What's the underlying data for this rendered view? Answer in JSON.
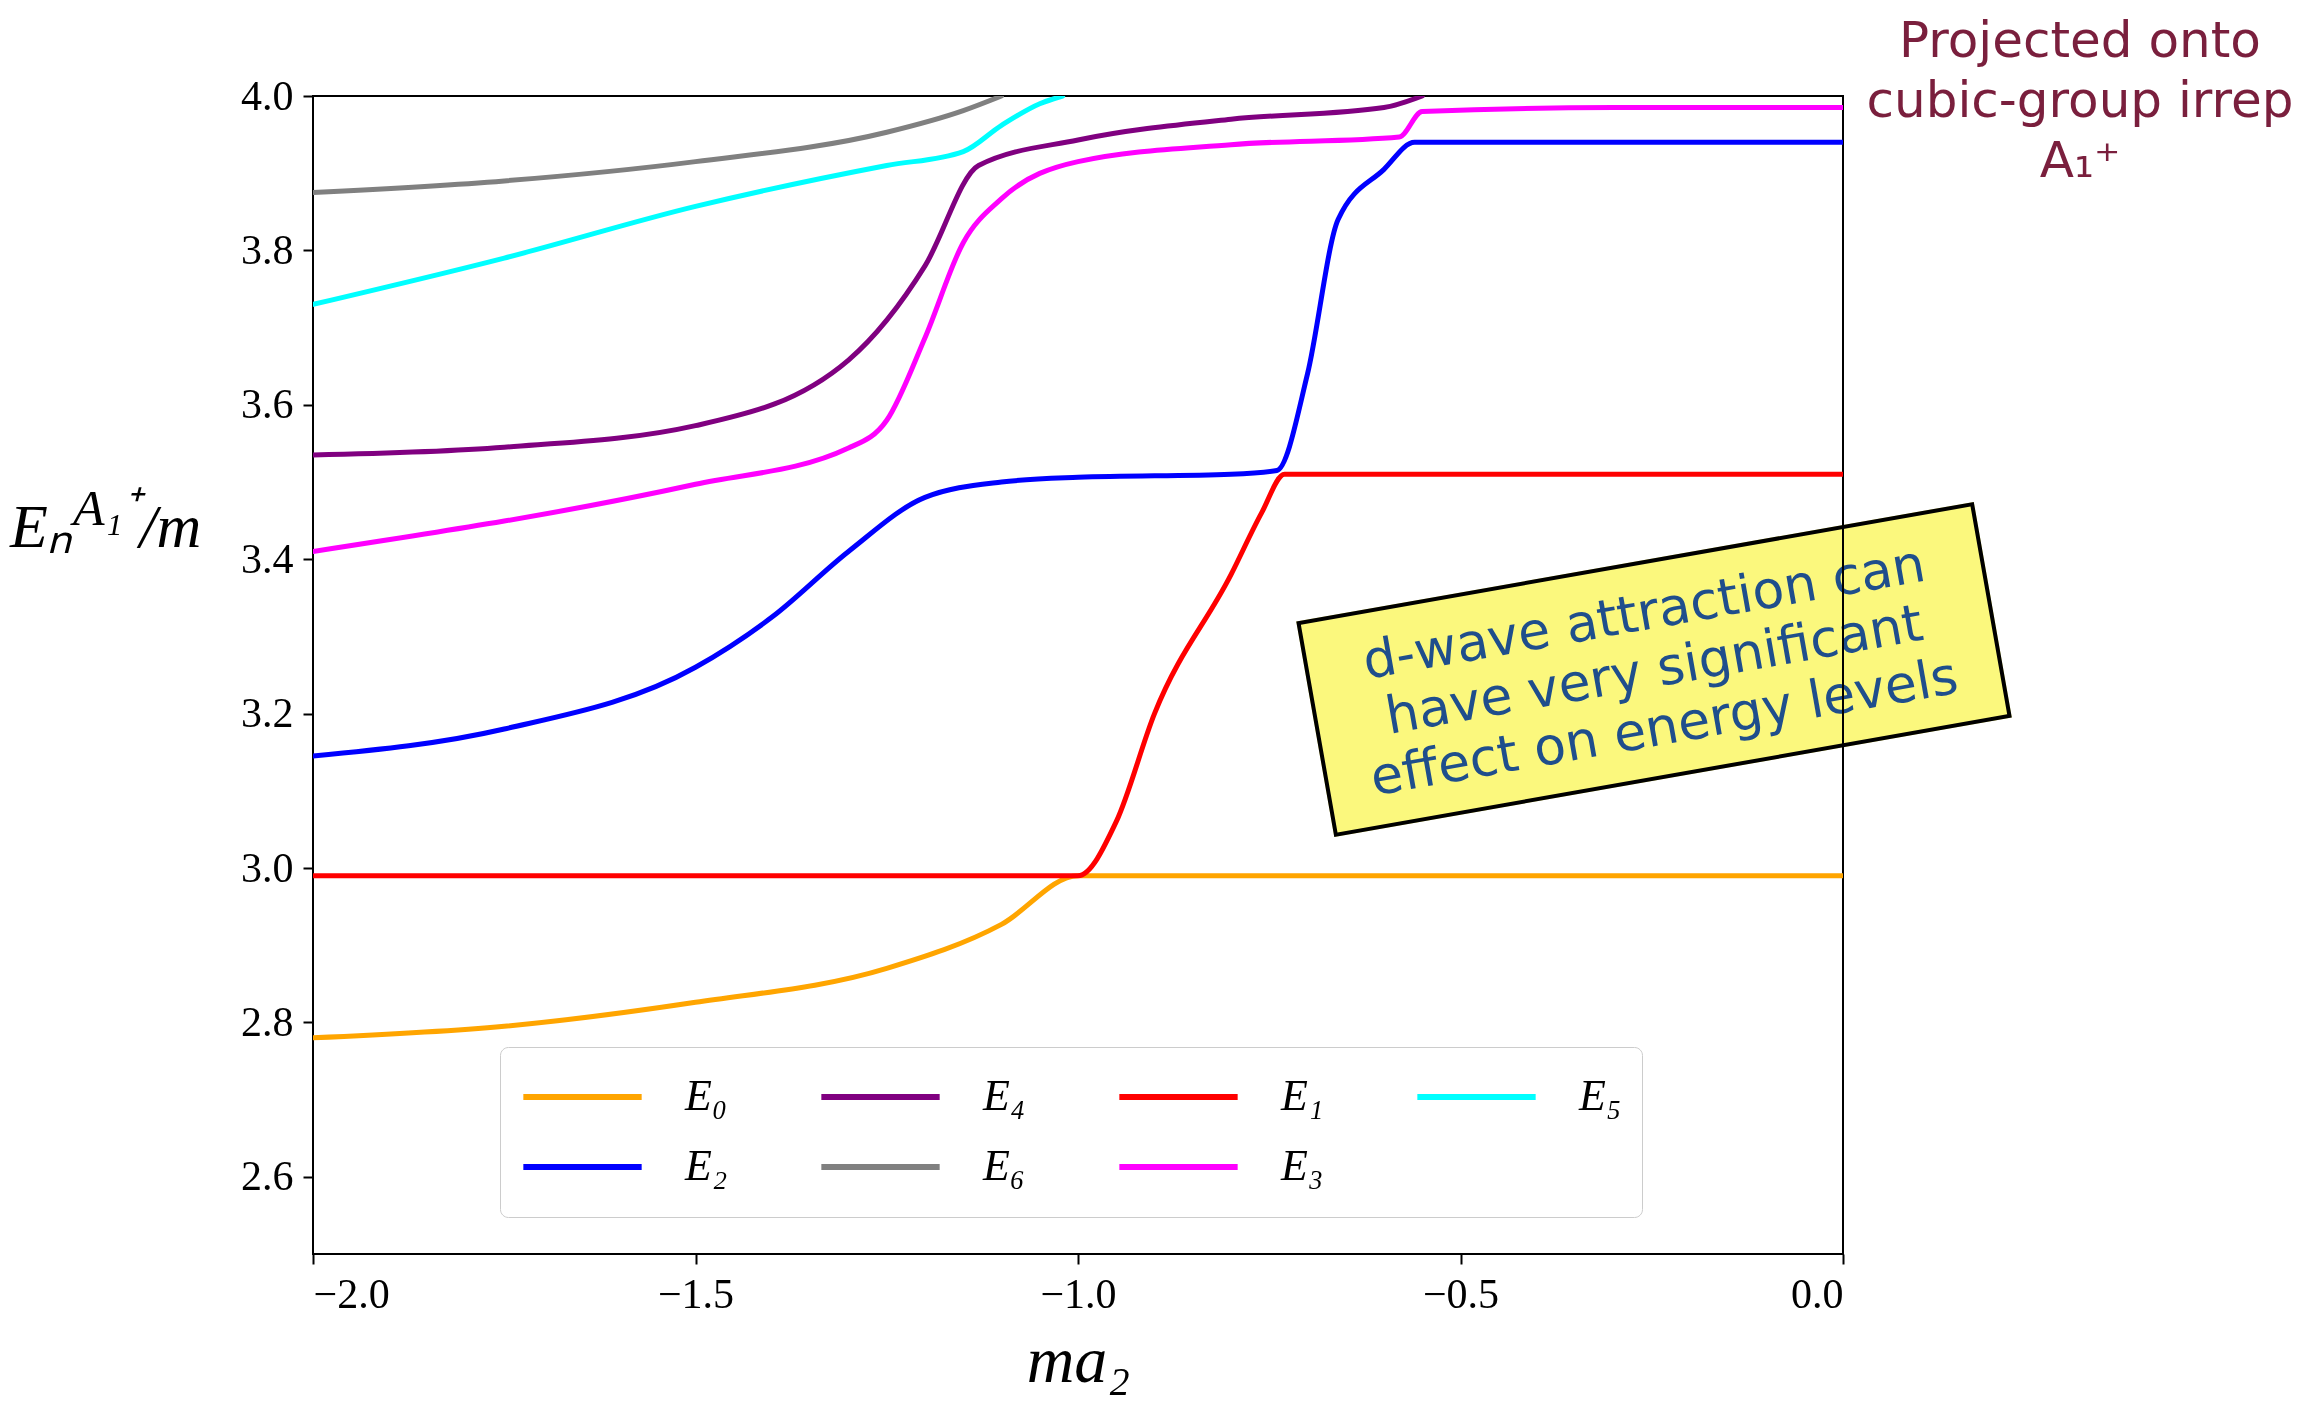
{
  "chart_data": {
    "type": "line",
    "xlabel": "ma₂",
    "ylabel": "Eₙ$^{A₁⁺}$/m",
    "annotations": [
      "Projected onto cubic-group irrep A₁⁺",
      "d-wave attraction can have very significant effect on energy levels"
    ],
    "xlim": [
      -2.0,
      0.0
    ],
    "ylim": [
      2.5,
      4.0
    ],
    "xticks": [
      {
        "value": -2,
        "label": "−2.0"
      },
      {
        "value": -1.5,
        "label": "−1.5"
      },
      {
        "value": -1,
        "label": "−1.0"
      },
      {
        "value": -0.5,
        "label": "−0.5"
      },
      {
        "value": 0,
        "label": "0.0"
      }
    ],
    "yticks": [
      2.6,
      2.8,
      {
        "value": 3,
        "label": "3.0"
      },
      3.2,
      3.4,
      3.6,
      3.8,
      {
        "value": 4,
        "label": "4.0"
      }
    ],
    "legend": "bottom",
    "line_style": "solid",
    "series": [
      {
        "name": "E₀",
        "color": "#ffa500",
        "x": [
          -2,
          -1.75,
          -1.5,
          -1.25,
          -1.1,
          -1.0,
          -0.5,
          0
        ],
        "values": [
          2.78,
          2.795,
          2.826,
          2.87,
          2.927,
          2.99,
          2.99,
          2.99
        ]
      },
      {
        "name": "E₁",
        "color": "#ff0000",
        "x": [
          -2,
          -1.5,
          -1.0,
          -0.95,
          -0.9,
          -0.8,
          -0.76,
          -0.73,
          -0.5,
          0
        ],
        "values": [
          2.99,
          2.99,
          2.99,
          3.06,
          3.2,
          3.38,
          3.46,
          3.51,
          3.51,
          3.51
        ]
      },
      {
        "name": "E₂",
        "color": "#0000ff",
        "x": [
          -2,
          -1.75,
          -1.5,
          -1.4,
          -1.3,
          -1.2,
          -1.1,
          -1.0,
          -0.8,
          -0.74,
          -0.7,
          -0.66,
          -0.6,
          -0.56,
          -0.3,
          0
        ],
        "values": [
          3.145,
          3.18,
          3.26,
          3.325,
          3.41,
          3.48,
          3.5,
          3.506,
          3.51,
          3.515,
          3.64,
          3.84,
          3.905,
          3.94,
          3.94,
          3.94
        ]
      },
      {
        "name": "E₃",
        "color": "#ff00ff",
        "x": [
          -2,
          -1.5,
          -1.3,
          -1.25,
          -1.2,
          -1.15,
          -1.1,
          -1.0,
          -0.8,
          -0.58,
          -0.55,
          -0.3,
          0
        ],
        "values": [
          3.41,
          3.497,
          3.544,
          3.58,
          3.687,
          3.81,
          3.867,
          3.915,
          3.937,
          3.947,
          3.98,
          3.985,
          3.985
        ]
      },
      {
        "name": "E₄",
        "color": "#800080",
        "x": [
          -2,
          -1.75,
          -1.5,
          -1.3,
          -1.2,
          -1.13,
          -1.0,
          -0.8,
          -0.6,
          -0.55
        ],
        "values": [
          3.535,
          3.545,
          3.573,
          3.658,
          3.78,
          3.91,
          3.943,
          3.97,
          3.985,
          4.0
        ]
      },
      {
        "name": "E₅",
        "color": "#00ffff",
        "x": [
          -2,
          -1.75,
          -1.5,
          -1.25,
          -1.15,
          -1.1,
          -1.05,
          -1.02
        ],
        "values": [
          3.73,
          3.79,
          3.857,
          3.91,
          3.928,
          3.962,
          3.99,
          4.0
        ]
      },
      {
        "name": "E₆",
        "color": "#808080",
        "x": [
          -2,
          -1.75,
          -1.5,
          -1.25,
          -1.15,
          -1.1
        ],
        "values": [
          3.875,
          3.89,
          3.915,
          3.953,
          3.981,
          4.0
        ]
      }
    ]
  }
}
